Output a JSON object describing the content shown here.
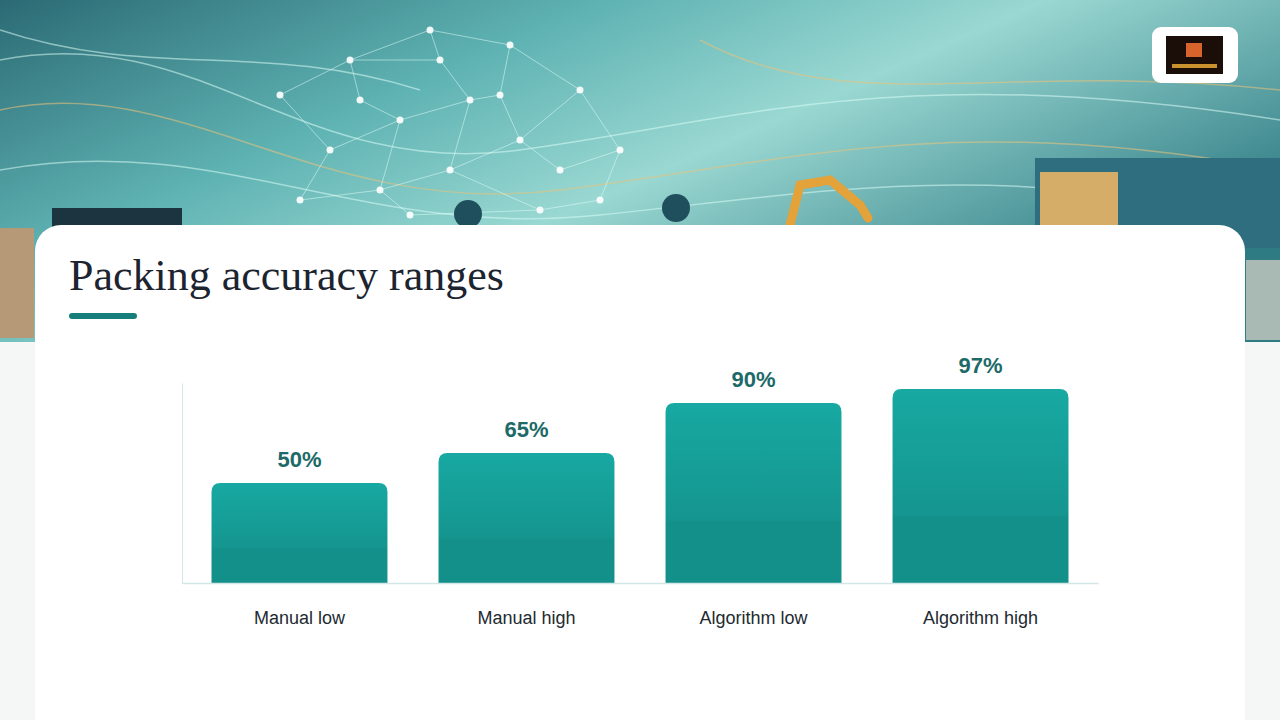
{
  "chart_data": {
    "type": "bar",
    "title": "Packing accuracy ranges",
    "categories": [
      "Manual low",
      "Manual high",
      "Algorithm low",
      "Algorithm high"
    ],
    "values": [
      50,
      65,
      90,
      97
    ],
    "value_labels": [
      "50%",
      "65%",
      "90%",
      "97%"
    ],
    "color": "#14908a",
    "ylim": [
      0,
      100
    ],
    "data_labels": true,
    "tick_labels": "x",
    "grid": false
  }
}
